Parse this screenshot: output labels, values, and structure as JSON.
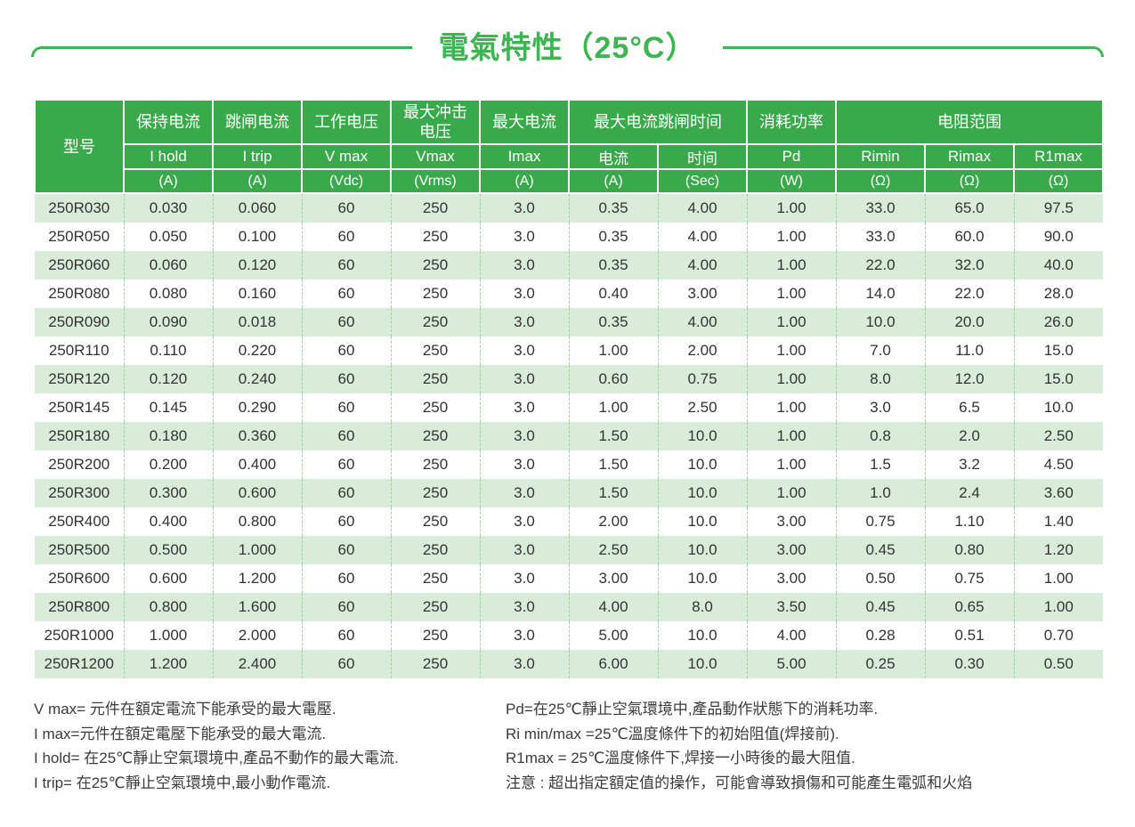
{
  "page": {
    "title": "電氣特性（25°C）"
  },
  "colors": {
    "title_green": "#3db551",
    "header_green": "#3aa94c",
    "stripe_green": "#d9ecda",
    "divider_dash_green": "#9fd0a2",
    "text_dark": "#333333"
  },
  "table": {
    "header": {
      "model_label": "型号",
      "group_labels": [
        "保持电流",
        "跳闸电流",
        "工作电压",
        "最大冲击电压",
        "最大电流",
        "最大电流跳闸时间",
        "消耗功率",
        "电阻范围"
      ],
      "symbols": [
        "I hold",
        "I trip",
        "V max",
        "Vmax",
        "Imax",
        "电流",
        "时间",
        "Pd",
        "Rimin",
        "Rimax",
        "R1max"
      ],
      "units": [
        "(A)",
        "(A)",
        "(Vdc)",
        "(Vrms)",
        "(A)",
        "(A)",
        "(Sec)",
        "(W)",
        "(Ω)",
        "(Ω)",
        "(Ω)"
      ]
    },
    "rows": [
      [
        "250R030",
        "0.030",
        "0.060",
        "60",
        "250",
        "3.0",
        "0.35",
        "4.00",
        "1.00",
        "33.0",
        "65.0",
        "97.5"
      ],
      [
        "250R050",
        "0.050",
        "0.100",
        "60",
        "250",
        "3.0",
        "0.35",
        "4.00",
        "1.00",
        "33.0",
        "60.0",
        "90.0"
      ],
      [
        "250R060",
        "0.060",
        "0.120",
        "60",
        "250",
        "3.0",
        "0.35",
        "4.00",
        "1.00",
        "22.0",
        "32.0",
        "40.0"
      ],
      [
        "250R080",
        "0.080",
        "0.160",
        "60",
        "250",
        "3.0",
        "0.40",
        "3.00",
        "1.00",
        "14.0",
        "22.0",
        "28.0"
      ],
      [
        "250R090",
        "0.090",
        "0.018",
        "60",
        "250",
        "3.0",
        "0.35",
        "4.00",
        "1.00",
        "10.0",
        "20.0",
        "26.0"
      ],
      [
        "250R110",
        "0.110",
        "0.220",
        "60",
        "250",
        "3.0",
        "1.00",
        "2.00",
        "1.00",
        "7.0",
        "11.0",
        "15.0"
      ],
      [
        "250R120",
        "0.120",
        "0.240",
        "60",
        "250",
        "3.0",
        "0.60",
        "0.75",
        "1.00",
        "8.0",
        "12.0",
        "15.0"
      ],
      [
        "250R145",
        "0.145",
        "0.290",
        "60",
        "250",
        "3.0",
        "1.00",
        "2.50",
        "1.00",
        "3.0",
        "6.5",
        "10.0"
      ],
      [
        "250R180",
        "0.180",
        "0.360",
        "60",
        "250",
        "3.0",
        "1.50",
        "10.0",
        "1.00",
        "0.8",
        "2.0",
        "2.50"
      ],
      [
        "250R200",
        "0.200",
        "0.400",
        "60",
        "250",
        "3.0",
        "1.50",
        "10.0",
        "1.00",
        "1.5",
        "3.2",
        "4.50"
      ],
      [
        "250R300",
        "0.300",
        "0.600",
        "60",
        "250",
        "3.0",
        "1.50",
        "10.0",
        "1.00",
        "1.0",
        "2.4",
        "3.60"
      ],
      [
        "250R400",
        "0.400",
        "0.800",
        "60",
        "250",
        "3.0",
        "2.00",
        "10.0",
        "3.00",
        "0.75",
        "1.10",
        "1.40"
      ],
      [
        "250R500",
        "0.500",
        "1.000",
        "60",
        "250",
        "3.0",
        "2.50",
        "10.0",
        "3.00",
        "0.45",
        "0.80",
        "1.20"
      ],
      [
        "250R600",
        "0.600",
        "1.200",
        "60",
        "250",
        "3.0",
        "3.00",
        "10.0",
        "3.00",
        "0.50",
        "0.75",
        "1.00"
      ],
      [
        "250R800",
        "0.800",
        "1.600",
        "60",
        "250",
        "3.0",
        "4.00",
        "8.0",
        "3.50",
        "0.45",
        "0.65",
        "1.00"
      ],
      [
        "250R1000",
        "1.000",
        "2.000",
        "60",
        "250",
        "3.0",
        "5.00",
        "10.0",
        "4.00",
        "0.28",
        "0.51",
        "0.70"
      ],
      [
        "250R1200",
        "1.200",
        "2.400",
        "60",
        "250",
        "3.0",
        "6.00",
        "10.0",
        "5.00",
        "0.25",
        "0.30",
        "0.50"
      ]
    ]
  },
  "notes": {
    "left": [
      "V max= 元件在額定電流下能承受的最大電壓.",
      "I max=元件在額定電壓下能承受的最大電流.",
      "I hold= 在25℃靜止空氣環境中,產品不動作的最大電流.",
      "I trip= 在25℃靜止空氣環境中,最小動作電流."
    ],
    "right": [
      "Pd=在25℃靜止空氣環境中,產品動作狀態下的消耗功率.",
      "Ri min/max  =25℃溫度條件下的初始阻值(焊接前).",
      "R1max  = 25℃溫度條件下,焊接一小時後的最大阻值.",
      "注意 : 超出指定額定值的操作，可能會導致損傷和可能產生電弧和火焰"
    ]
  }
}
